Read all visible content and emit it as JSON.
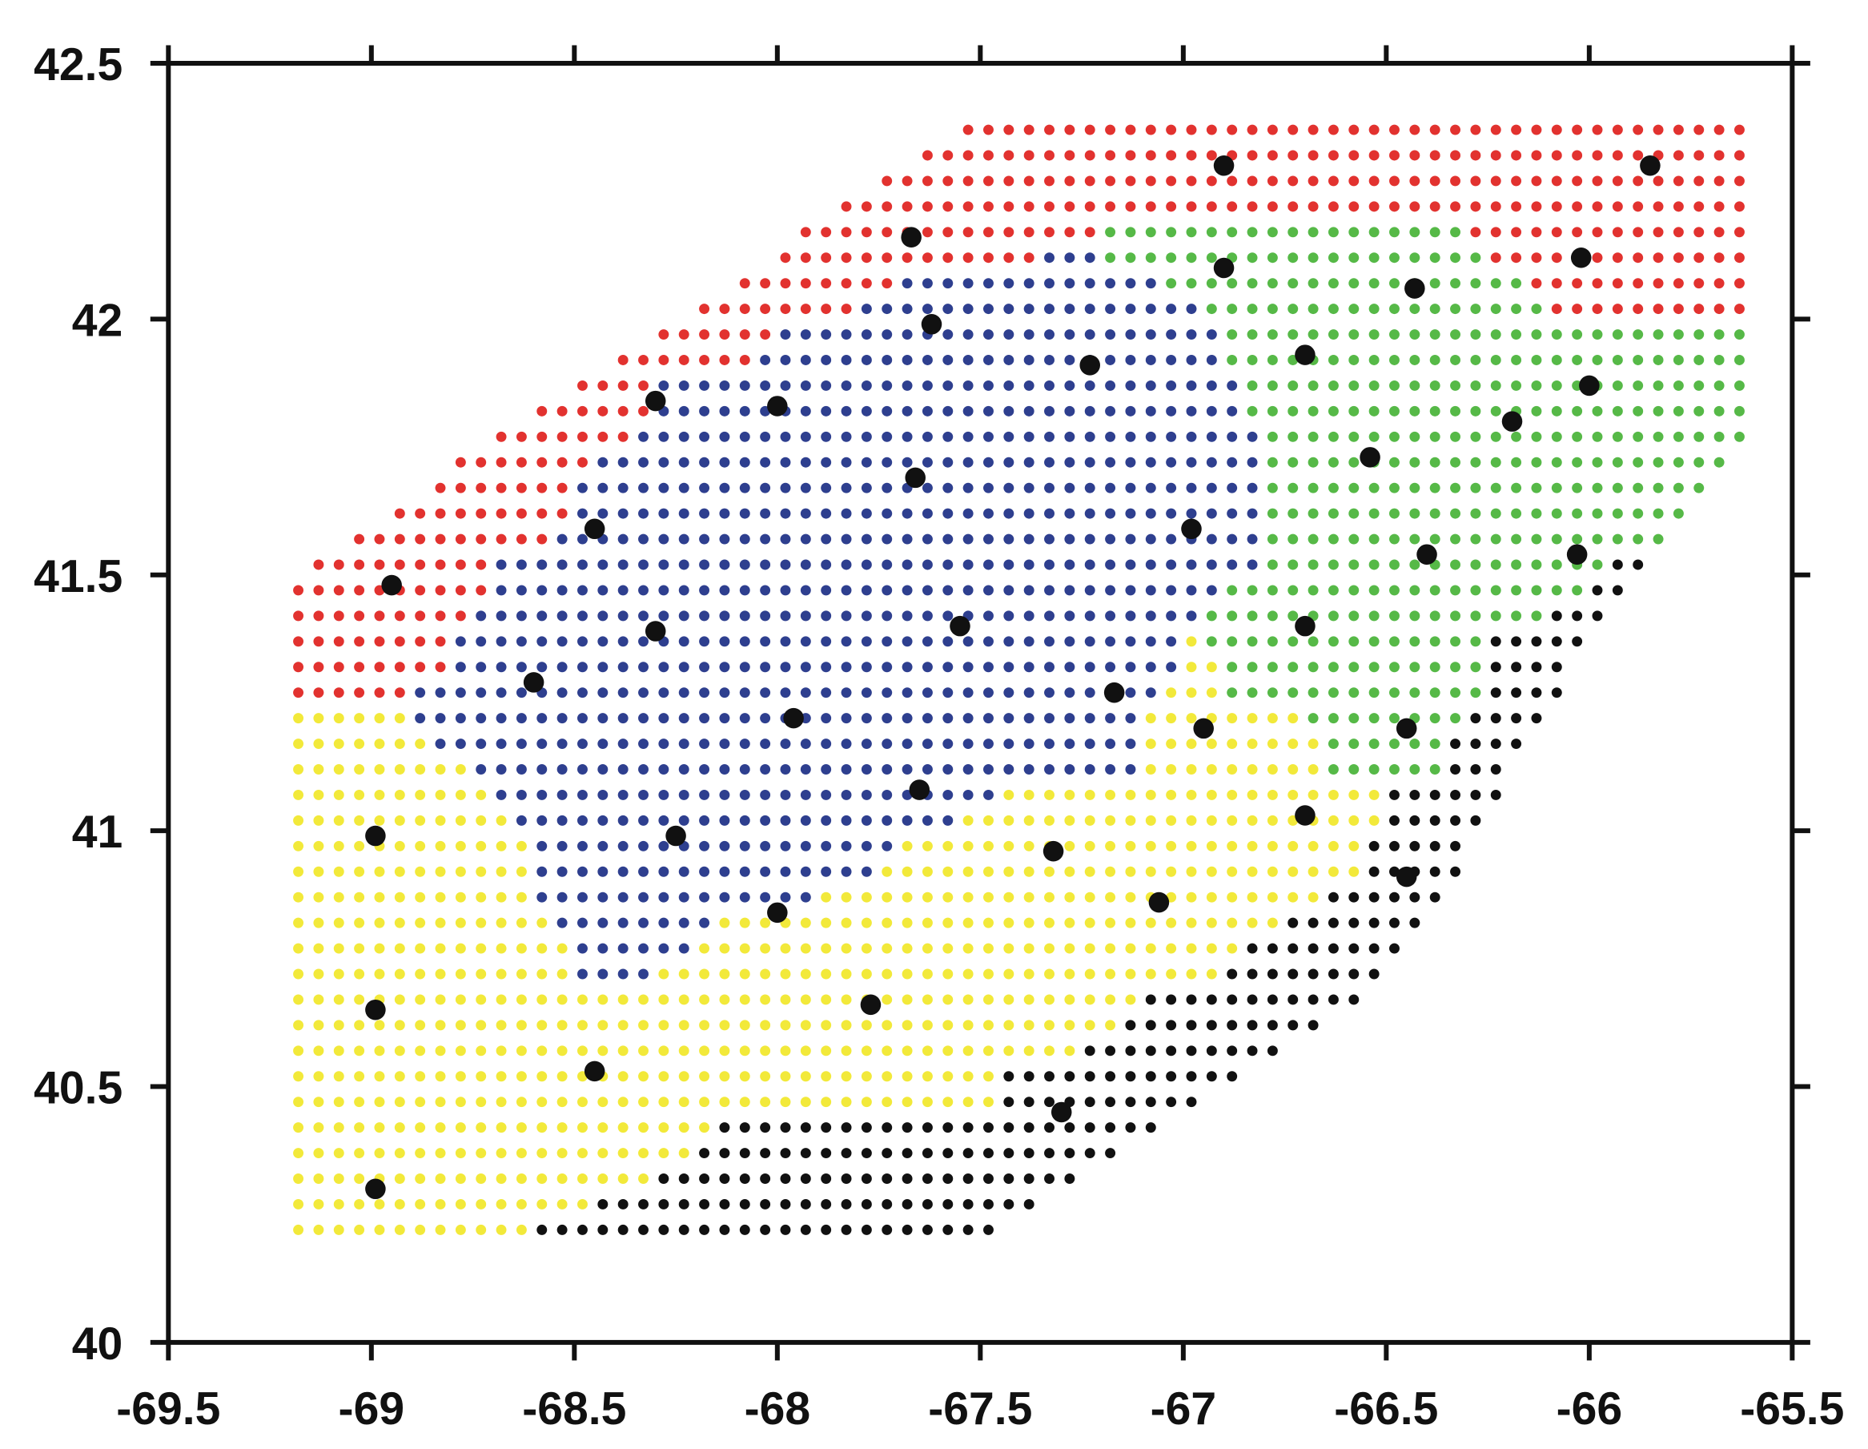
{
  "chart_data": {
    "type": "scatter",
    "xlim": [
      -69.5,
      -65.5
    ],
    "ylim": [
      40,
      42.5
    ],
    "xticks": [
      -69.5,
      -69,
      -68.5,
      -68,
      -67.5,
      -67,
      -66.5,
      -66,
      -65.5
    ],
    "yticks": [
      40,
      40.5,
      41,
      41.5,
      42,
      42.5
    ],
    "step": 0.05,
    "grids": [
      {
        "color": "#e2322f",
        "runs": [
          [
            42.37,
            -67.53,
            -65.63
          ],
          [
            42.32,
            -67.63,
            -65.63
          ],
          [
            42.27,
            -67.73,
            -65.63
          ],
          [
            42.22,
            -67.83,
            -65.63
          ],
          [
            42.17,
            -67.93,
            -67.23
          ],
          [
            42.17,
            -66.28,
            -65.63
          ],
          [
            42.12,
            -67.98,
            -67.38
          ],
          [
            42.12,
            -66.23,
            -65.63
          ],
          [
            42.07,
            -68.08,
            -67.73
          ],
          [
            42.07,
            -66.13,
            -65.63
          ],
          [
            42.02,
            -68.18,
            -67.83
          ],
          [
            42.02,
            -66.08,
            -65.63
          ],
          [
            41.97,
            -68.28,
            -68.03
          ],
          [
            41.92,
            -68.38,
            -68.08
          ],
          [
            41.87,
            -68.48,
            -68.33
          ],
          [
            41.82,
            -68.58,
            -68.33
          ],
          [
            41.77,
            -68.68,
            -68.38
          ],
          [
            41.72,
            -68.78,
            -68.48
          ],
          [
            41.67,
            -68.83,
            -68.53
          ],
          [
            41.62,
            -68.93,
            -68.53
          ],
          [
            41.57,
            -69.03,
            -68.58
          ],
          [
            41.52,
            -69.13,
            -68.73
          ],
          [
            41.47,
            -69.18,
            -68.73
          ],
          [
            41.42,
            -69.18,
            -68.78
          ],
          [
            41.37,
            -69.18,
            -68.83
          ],
          [
            41.32,
            -69.18,
            -68.83
          ],
          [
            41.27,
            -69.18,
            -68.93
          ]
        ]
      },
      {
        "color": "#2e3f8f",
        "runs": [
          [
            42.12,
            -67.33,
            -67.23
          ],
          [
            42.07,
            -67.68,
            -67.08
          ],
          [
            42.02,
            -67.78,
            -66.98
          ],
          [
            41.97,
            -67.98,
            -66.93
          ],
          [
            41.92,
            -68.03,
            -66.93
          ],
          [
            41.87,
            -68.28,
            -66.88
          ],
          [
            41.82,
            -68.28,
            -66.88
          ],
          [
            41.77,
            -68.33,
            -66.83
          ],
          [
            41.72,
            -68.43,
            -66.83
          ],
          [
            41.67,
            -68.48,
            -66.83
          ],
          [
            41.62,
            -68.48,
            -66.83
          ],
          [
            41.57,
            -68.53,
            -66.83
          ],
          [
            41.52,
            -68.68,
            -66.83
          ],
          [
            41.47,
            -68.68,
            -66.93
          ],
          [
            41.42,
            -68.73,
            -66.98
          ],
          [
            41.37,
            -68.78,
            -67.03
          ],
          [
            41.32,
            -68.78,
            -67.03
          ],
          [
            41.27,
            -68.88,
            -67.08
          ],
          [
            41.22,
            -68.88,
            -67.13
          ],
          [
            41.17,
            -68.83,
            -67.13
          ],
          [
            41.12,
            -68.73,
            -67.13
          ],
          [
            41.07,
            -68.68,
            -67.48
          ],
          [
            41.02,
            -68.63,
            -67.58
          ],
          [
            40.97,
            -68.58,
            -67.73
          ],
          [
            40.92,
            -68.58,
            -67.78
          ],
          [
            40.87,
            -68.58,
            -67.93
          ],
          [
            40.82,
            -68.53,
            -68.18
          ],
          [
            40.77,
            -68.48,
            -68.23
          ],
          [
            40.72,
            -68.48,
            -68.33
          ]
        ]
      },
      {
        "color": "#56b947",
        "runs": [
          [
            42.17,
            -67.18,
            -66.33
          ],
          [
            42.12,
            -67.18,
            -66.28
          ],
          [
            42.07,
            -67.03,
            -66.18
          ],
          [
            42.02,
            -66.93,
            -66.13
          ],
          [
            41.97,
            -66.88,
            -65.63
          ],
          [
            41.92,
            -66.88,
            -65.63
          ],
          [
            41.87,
            -66.83,
            -65.63
          ],
          [
            41.82,
            -66.83,
            -65.63
          ],
          [
            41.77,
            -66.78,
            -65.63
          ],
          [
            41.72,
            -66.78,
            -65.68
          ],
          [
            41.67,
            -66.78,
            -65.73
          ],
          [
            41.62,
            -66.78,
            -65.78
          ],
          [
            41.57,
            -66.78,
            -65.83
          ],
          [
            41.52,
            -66.78,
            -65.98
          ],
          [
            41.47,
            -66.88,
            -66.03
          ],
          [
            41.42,
            -66.93,
            -66.13
          ],
          [
            41.37,
            -66.93,
            -66.28
          ],
          [
            41.32,
            -66.88,
            -66.28
          ],
          [
            41.27,
            -66.88,
            -66.28
          ],
          [
            41.22,
            -66.68,
            -66.33
          ],
          [
            41.17,
            -66.63,
            -66.38
          ],
          [
            41.12,
            -66.63,
            -66.38
          ]
        ]
      },
      {
        "color": "#f2e93a",
        "runs": [
          [
            41.37,
            -66.98,
            -66.98
          ],
          [
            41.32,
            -66.98,
            -66.93
          ],
          [
            41.27,
            -67.03,
            -66.93
          ],
          [
            41.22,
            -69.18,
            -68.93
          ],
          [
            41.22,
            -67.08,
            -66.73
          ],
          [
            41.17,
            -69.18,
            -68.88
          ],
          [
            41.17,
            -67.08,
            -66.68
          ],
          [
            41.12,
            -69.18,
            -68.78
          ],
          [
            41.12,
            -67.08,
            -66.68
          ],
          [
            41.07,
            -69.18,
            -68.73
          ],
          [
            41.07,
            -67.43,
            -66.53
          ],
          [
            41.02,
            -69.18,
            -68.68
          ],
          [
            41.02,
            -67.53,
            -66.53
          ],
          [
            40.97,
            -69.18,
            -68.63
          ],
          [
            40.97,
            -67.68,
            -66.58
          ],
          [
            40.92,
            -69.18,
            -68.63
          ],
          [
            40.92,
            -67.73,
            -66.58
          ],
          [
            40.87,
            -69.18,
            -68.63
          ],
          [
            40.87,
            -67.88,
            -66.68
          ],
          [
            40.82,
            -69.18,
            -68.58
          ],
          [
            40.82,
            -68.13,
            -66.78
          ],
          [
            40.77,
            -69.18,
            -68.53
          ],
          [
            40.77,
            -68.18,
            -66.88
          ],
          [
            40.72,
            -69.18,
            -68.53
          ],
          [
            40.72,
            -68.28,
            -66.93
          ],
          [
            40.67,
            -69.18,
            -67.13
          ],
          [
            40.62,
            -69.18,
            -67.18
          ],
          [
            40.57,
            -69.18,
            -67.28
          ],
          [
            40.52,
            -69.18,
            -67.48
          ],
          [
            40.47,
            -69.18,
            -67.48
          ],
          [
            40.42,
            -69.18,
            -68.18
          ],
          [
            40.37,
            -69.18,
            -68.23
          ],
          [
            40.32,
            -69.18,
            -68.33
          ],
          [
            40.27,
            -69.18,
            -68.48
          ],
          [
            40.22,
            -69.18,
            -68.63
          ]
        ]
      },
      {
        "color": "#111111",
        "runs": [
          [
            41.52,
            -65.93,
            -65.88
          ],
          [
            41.47,
            -65.98,
            -65.93
          ],
          [
            41.42,
            -66.08,
            -65.98
          ],
          [
            41.37,
            -66.23,
            -66.03
          ],
          [
            41.32,
            -66.23,
            -66.08
          ],
          [
            41.27,
            -66.23,
            -66.08
          ],
          [
            41.22,
            -66.28,
            -66.13
          ],
          [
            41.17,
            -66.33,
            -66.18
          ],
          [
            41.12,
            -66.33,
            -66.23
          ],
          [
            41.07,
            -66.48,
            -66.23
          ],
          [
            41.02,
            -66.48,
            -66.28
          ],
          [
            40.97,
            -66.53,
            -66.33
          ],
          [
            40.92,
            -66.53,
            -66.33
          ],
          [
            40.87,
            -66.63,
            -66.38
          ],
          [
            40.82,
            -66.73,
            -66.43
          ],
          [
            40.77,
            -66.83,
            -66.48
          ],
          [
            40.72,
            -66.88,
            -66.53
          ],
          [
            40.67,
            -67.08,
            -66.58
          ],
          [
            40.62,
            -67.13,
            -66.68
          ],
          [
            40.57,
            -67.23,
            -66.78
          ],
          [
            40.52,
            -67.43,
            -66.88
          ],
          [
            40.47,
            -67.43,
            -66.98
          ],
          [
            40.42,
            -68.13,
            -67.08
          ],
          [
            40.37,
            -68.18,
            -67.18
          ],
          [
            40.32,
            -68.28,
            -67.28
          ],
          [
            40.27,
            -68.43,
            -67.38
          ],
          [
            40.22,
            -68.58,
            -67.48
          ]
        ]
      }
    ],
    "points": {
      "color": "#111111",
      "x": [
        -66.9,
        -65.85,
        -67.67,
        -66.9,
        -66.02,
        -66.43,
        -67.62,
        -67.23,
        -66.7,
        -66.0,
        -68.3,
        -68.0,
        -66.19,
        -66.54,
        -67.66,
        -68.45,
        -66.98,
        -66.4,
        -66.03,
        -68.95,
        -68.3,
        -67.55,
        -66.7,
        -68.6,
        -67.17,
        -67.96,
        -66.95,
        -66.45,
        -67.65,
        -68.99,
        -68.25,
        -66.7,
        -67.32,
        -67.06,
        -66.45,
        -68.0,
        -67.77,
        -68.99,
        -68.45,
        -67.3,
        -68.99
      ],
      "y": [
        42.3,
        42.3,
        42.16,
        42.1,
        42.12,
        42.06,
        41.99,
        41.91,
        41.93,
        41.87,
        41.84,
        41.83,
        41.8,
        41.73,
        41.69,
        41.59,
        41.59,
        41.54,
        41.54,
        41.48,
        41.39,
        41.4,
        41.4,
        41.29,
        41.27,
        41.22,
        41.2,
        41.2,
        41.08,
        40.99,
        40.99,
        41.03,
        40.96,
        40.86,
        40.91,
        40.84,
        40.66,
        40.65,
        40.53,
        40.45,
        40.3
      ]
    }
  }
}
